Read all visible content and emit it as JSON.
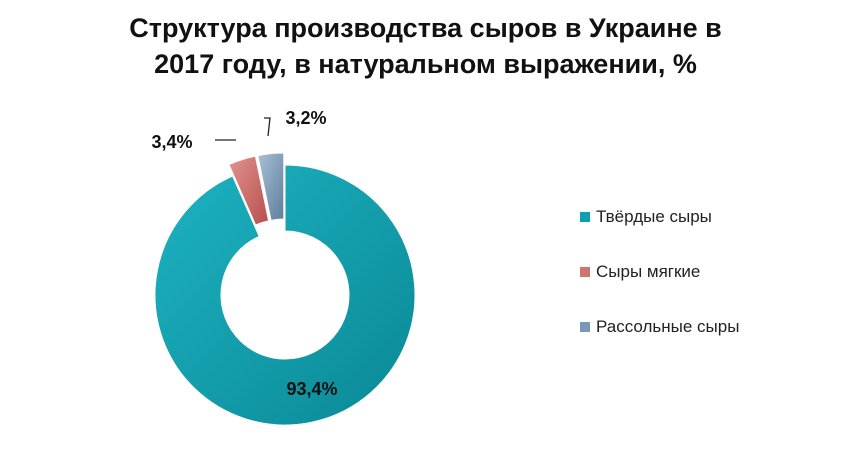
{
  "chart_data": {
    "type": "pie",
    "variant": "doughnut-exploded",
    "title_lines": [
      "Структура производства сыров в Украине в",
      "2017 году, в натуральном выражении, %"
    ],
    "series": [
      {
        "name": "Твёрдые сыры",
        "value": 93.4,
        "label": "93,4%",
        "color": "#0E9FAE"
      },
      {
        "name": "Сыры мягкие",
        "value": 3.4,
        "label": "3,4%",
        "color": "#C0504D"
      },
      {
        "name": "Рассольные сыры",
        "value": 3.2,
        "label": "3,2%",
        "color": "#4F81BD"
      }
    ],
    "legend": {
      "placement": "right"
    }
  }
}
